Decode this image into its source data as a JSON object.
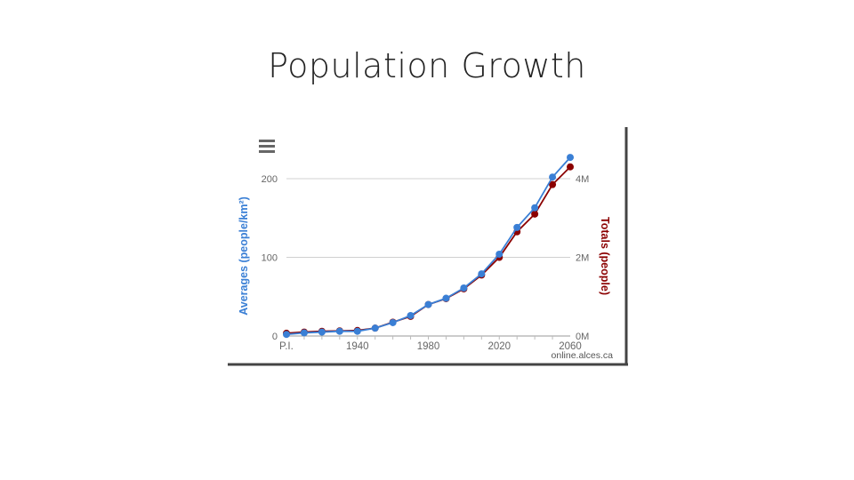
{
  "slide": {
    "title": "Population Growth"
  },
  "source_credit": "online.alces.ca",
  "chart_data": {
    "type": "line",
    "title": "",
    "xlabel": "",
    "ylabel_left": "Averages (people/km²)",
    "ylabel_right": "Totals (people)",
    "x_ticks": [
      {
        "label": "P.I.",
        "x": 1900
      },
      {
        "label": "1940",
        "x": 1940
      },
      {
        "label": "1980",
        "x": 1980
      },
      {
        "label": "2020",
        "x": 2020
      },
      {
        "label": "2060",
        "x": 2060
      }
    ],
    "y_left_ticks": [
      "0",
      "100",
      "200"
    ],
    "y_right_ticks": [
      "0M",
      "2M",
      "4M"
    ],
    "y_left_range": [
      0,
      200
    ],
    "y_right_range": [
      0,
      4
    ],
    "grid": true,
    "colors": {
      "totals": "#8b0000",
      "averages": "#3a7fd5"
    },
    "series": [
      {
        "key": "totals",
        "x": [
          1900,
          1910,
          1920,
          1930,
          1940,
          1950,
          1960,
          1970,
          1980,
          1990,
          2000,
          2010,
          2020,
          2030,
          2040,
          2050,
          2060
        ],
        "values": [
          0.07,
          0.1,
          0.12,
          0.13,
          0.14,
          0.2,
          0.35,
          0.5,
          0.8,
          0.95,
          1.2,
          1.55,
          2.0,
          2.65,
          3.1,
          3.85,
          4.3
        ]
      },
      {
        "key": "averages",
        "x": [
          1900,
          1910,
          1920,
          1930,
          1940,
          1950,
          1960,
          1970,
          1980,
          1990,
          2000,
          2010,
          2020,
          2030,
          2040,
          2050,
          2060
        ],
        "values": [
          2,
          4,
          5,
          6,
          6,
          10,
          17,
          26,
          40,
          48,
          61,
          79,
          104,
          138,
          163,
          202,
          227
        ]
      }
    ]
  }
}
